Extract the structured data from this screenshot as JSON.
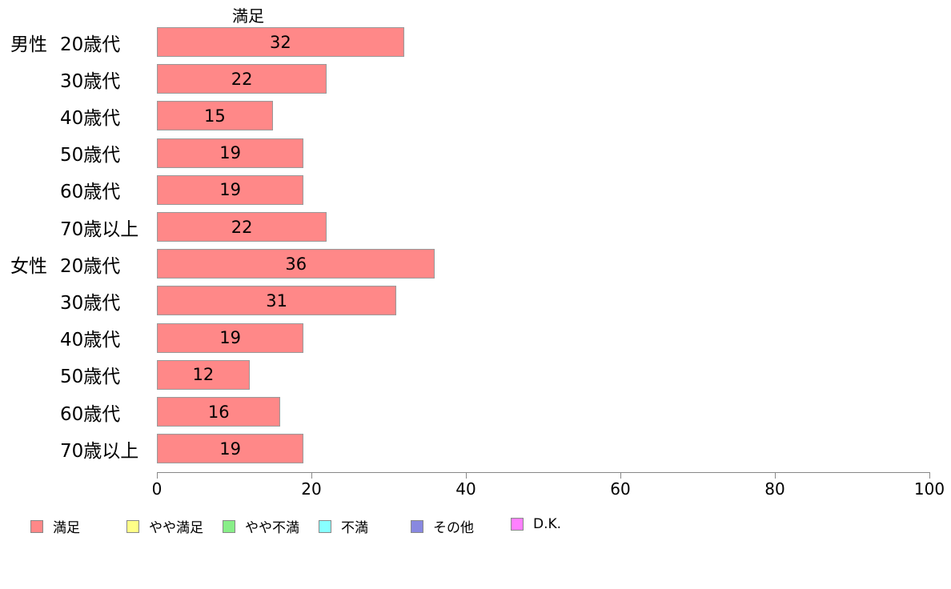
{
  "chart_data": {
    "type": "bar",
    "orientation": "horizontal",
    "title": "満足",
    "categories": [
      {
        "prefix": "男性",
        "label": "20歳代"
      },
      {
        "prefix": "",
        "label": "30歳代"
      },
      {
        "prefix": "",
        "label": "40歳代"
      },
      {
        "prefix": "",
        "label": "50歳代"
      },
      {
        "prefix": "",
        "label": "60歳代"
      },
      {
        "prefix": "",
        "label": "70歳以上"
      },
      {
        "prefix": "女性",
        "label": "20歳代"
      },
      {
        "prefix": "",
        "label": "30歳代"
      },
      {
        "prefix": "",
        "label": "40歳代"
      },
      {
        "prefix": "",
        "label": "50歳代"
      },
      {
        "prefix": "",
        "label": "60歳代"
      },
      {
        "prefix": "",
        "label": "70歳以上"
      }
    ],
    "values": [
      32,
      22,
      15,
      19,
      19,
      22,
      36,
      31,
      19,
      12,
      16,
      19
    ],
    "xlim": [
      0,
      100
    ],
    "xticks": [
      "0",
      "20",
      "40",
      "60",
      "80",
      "100"
    ],
    "xtick_values": [
      0,
      20,
      40,
      60,
      80,
      100
    ],
    "bar_color": "#FF8888",
    "bar_border_color": "#999999",
    "axis_color": "#888888",
    "grid": false,
    "legend_position": "bottom",
    "legend": [
      {
        "label": "満足",
        "color": "#FF8888"
      },
      {
        "label": "やや満足",
        "color": "#FFFF88"
      },
      {
        "label": "やや不満",
        "color": "#88EE88"
      },
      {
        "label": "不満",
        "color": "#88FFFF"
      },
      {
        "label": "その他",
        "color": "#8888E0"
      },
      {
        "label": "D.K.",
        "color": "#FF80FF"
      }
    ]
  }
}
